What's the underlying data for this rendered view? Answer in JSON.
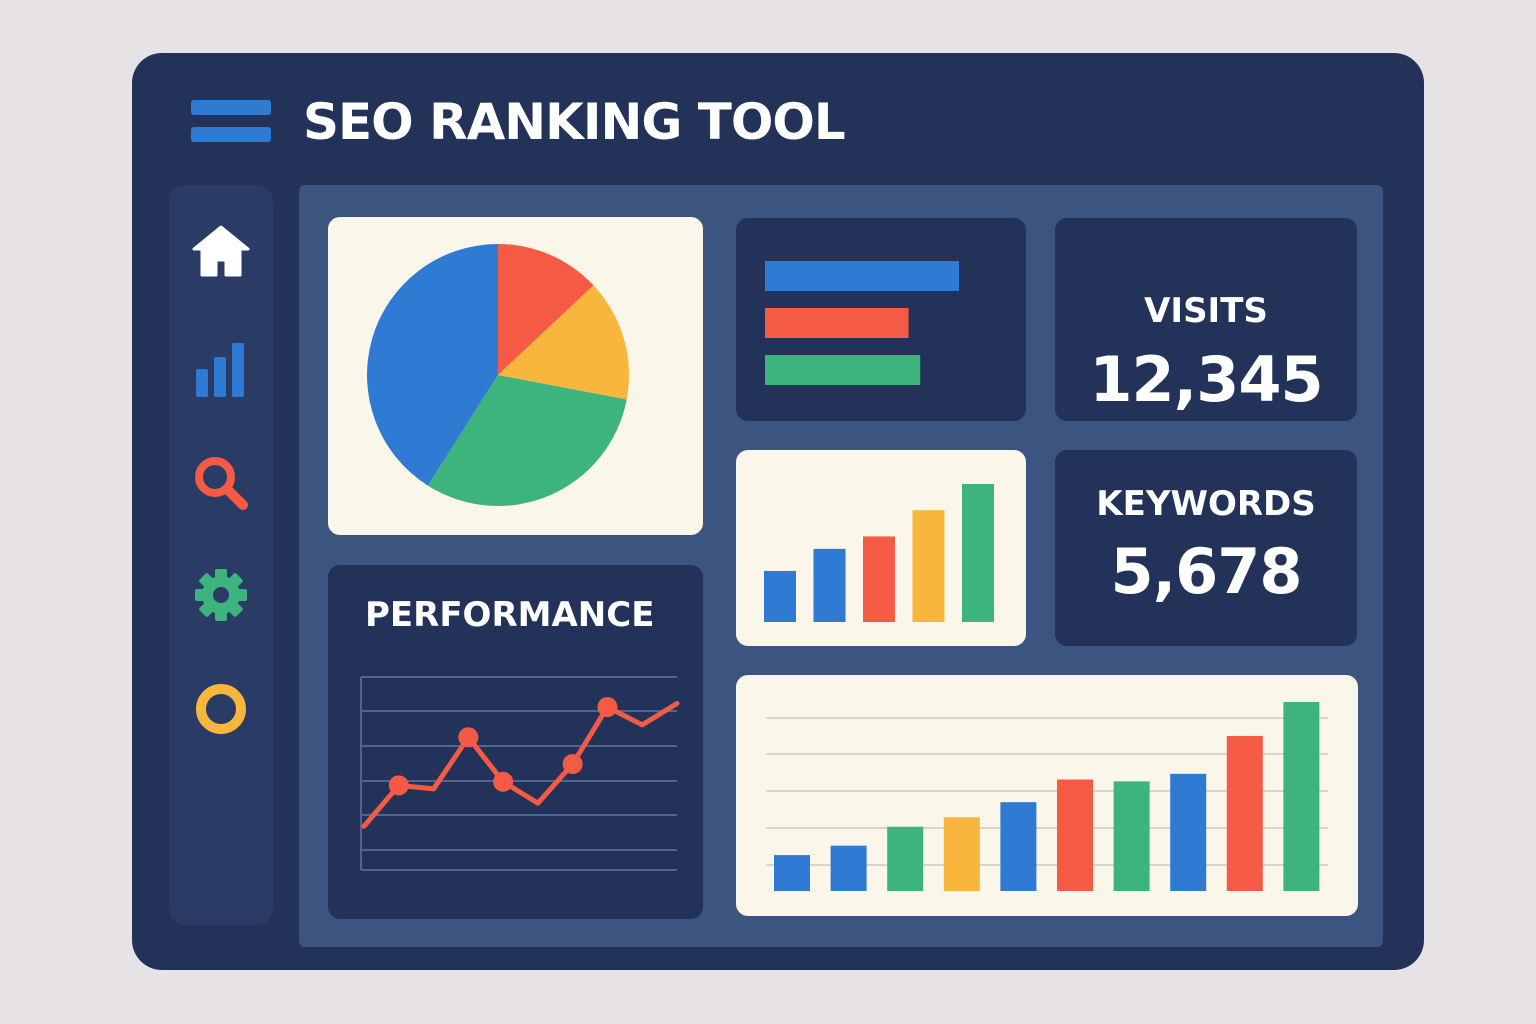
{
  "header": {
    "title": "SEO RANKING TOOL",
    "menu_icon": "hamburger-menu-icon"
  },
  "sidebar": {
    "items": [
      {
        "name": "home",
        "icon": "home-icon",
        "color": "#ffffff"
      },
      {
        "name": "analytics",
        "icon": "bar-chart-icon",
        "color": "#2f7ad2"
      },
      {
        "name": "search",
        "icon": "search-icon",
        "color": "#f55a45"
      },
      {
        "name": "settings",
        "icon": "gear-icon",
        "color": "#3db47e"
      },
      {
        "name": "status",
        "icon": "circle-icon",
        "color": "#f8b73c"
      }
    ]
  },
  "stats": {
    "visits": {
      "label": "VISITS",
      "value": "12,345"
    },
    "keywords": {
      "label": "KEYWORDS",
      "value": "5,678"
    }
  },
  "performance": {
    "title": "PERFORMANCE"
  },
  "colors": {
    "blue": "#2f7ad2",
    "red": "#f55a45",
    "yellow": "#f8b73c",
    "green": "#3db47e",
    "window": "#233258",
    "panel": "#3b5480",
    "card_light": "#fbf6ea"
  },
  "chart_data": [
    {
      "id": "pie",
      "type": "pie",
      "values": [
        13,
        15,
        31,
        41
      ],
      "colors": [
        "#f55a45",
        "#f8b73c",
        "#3db47e",
        "#2f7ad2"
      ]
    },
    {
      "id": "horizontal-bars",
      "type": "bar",
      "orientation": "horizontal",
      "values": [
        100,
        74,
        80
      ],
      "colors": [
        "#2f7ad2",
        "#f55a45",
        "#3db47e"
      ]
    },
    {
      "id": "small-bars",
      "type": "bar",
      "values": [
        37,
        53,
        62,
        81,
        100
      ],
      "colors": [
        "#2f7ad2",
        "#2f7ad2",
        "#f55a45",
        "#f8b73c",
        "#3db47e"
      ]
    },
    {
      "id": "performance-line",
      "type": "line",
      "title": "PERFORMANCE",
      "grid": true,
      "ylim": [
        0,
        100
      ],
      "x": [
        0,
        1,
        2,
        3,
        4,
        5,
        6,
        7,
        8,
        9
      ],
      "values": [
        15,
        38,
        36,
        65,
        40,
        28,
        50,
        82,
        72,
        84
      ],
      "markers": [
        false,
        true,
        false,
        true,
        true,
        false,
        true,
        true,
        false,
        false
      ],
      "color": "#f55a45"
    },
    {
      "id": "large-bars",
      "type": "bar",
      "grid": true,
      "ylim": [
        0,
        100
      ],
      "values": [
        19,
        24,
        34,
        39,
        47,
        59,
        58,
        62,
        82,
        100
      ],
      "colors": [
        "#2f7ad2",
        "#2f7ad2",
        "#3db47e",
        "#f8b73c",
        "#2f7ad2",
        "#f55a45",
        "#3db47e",
        "#2f7ad2",
        "#f55a45",
        "#3db47e"
      ]
    }
  ]
}
